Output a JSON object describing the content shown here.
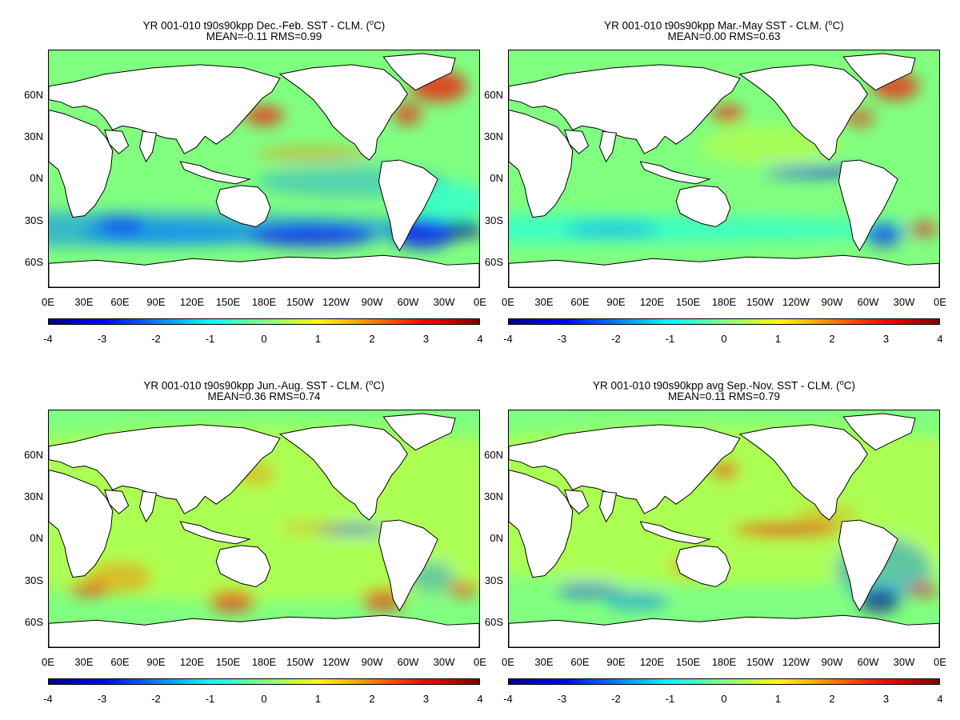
{
  "panels": [
    {
      "title": "YR 001-010 t90s90kpp  Dec.-Feb. SST - CLM. (",
      "title_unit": "C)",
      "stats": "MEAN=-0.11   RMS=0.99"
    },
    {
      "title": "YR 001-010 t90s90kpp Mar.-May SST - CLM. (",
      "title_unit": "C)",
      "stats": "MEAN=0.00   RMS=0.63"
    },
    {
      "title": "YR 001-010 t90s90kpp Jun.-Aug. SST - CLM. (",
      "title_unit": "C)",
      "stats": "MEAN=0.36   RMS=0.74"
    },
    {
      "title": "YR 001-010 t90s90kpp avg Sep.-Nov. SST - CLM. (",
      "title_unit": "C)",
      "stats": "MEAN=0.11   RMS=0.79"
    }
  ],
  "degree_symbol": "o",
  "lat_labels": [
    "60N",
    "30N",
    "0N",
    "30S",
    "60S"
  ],
  "lon_labels": [
    "0E",
    "30E",
    "60E",
    "90E",
    "120E",
    "150E",
    "180E",
    "150W",
    "120W",
    "90W",
    "60W",
    "30W",
    "0E"
  ],
  "colorbar_labels": [
    "-4",
    "-3",
    "-2",
    "-1",
    "0",
    "1",
    "2",
    "3",
    "4"
  ],
  "colormap": [
    "#00008f",
    "#0000ff",
    "#0080ff",
    "#00ffff",
    "#80ff80",
    "#ffff00",
    "#ff8000",
    "#ff0000",
    "#800000"
  ]
}
